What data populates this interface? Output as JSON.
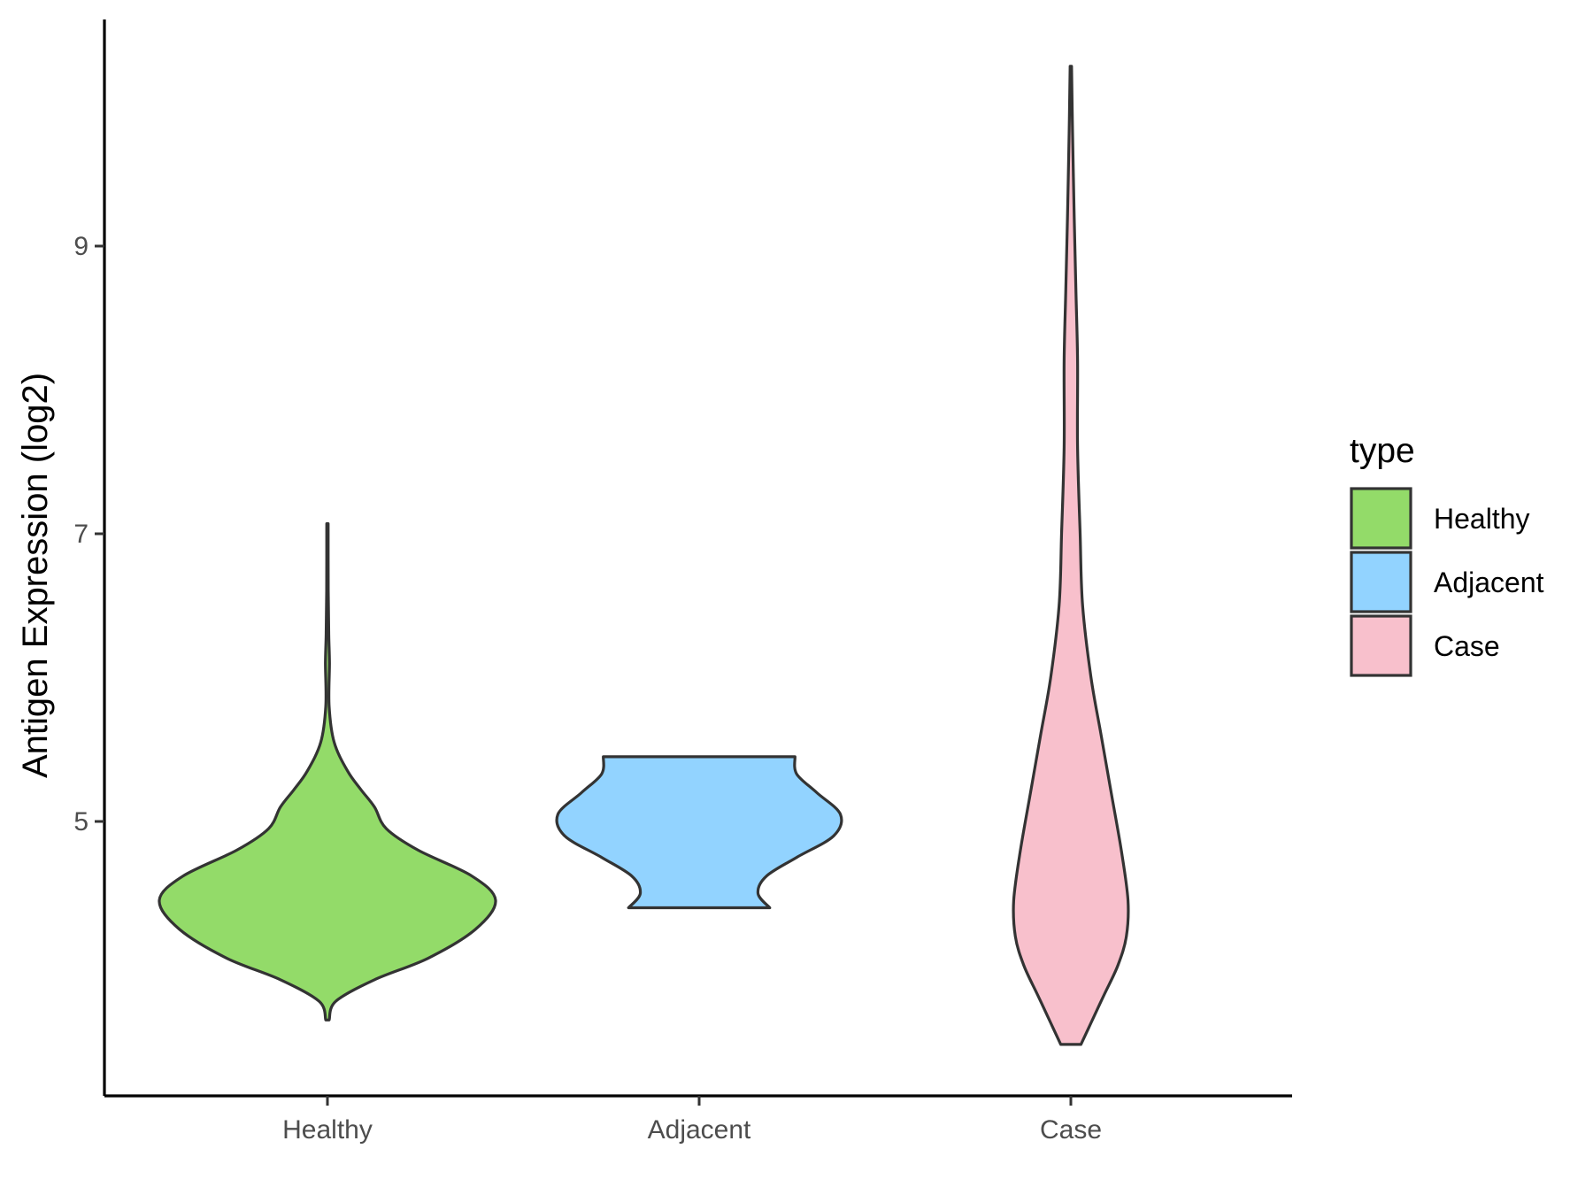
{
  "chart_data": {
    "type": "violin",
    "ylabel": "Antigen Expression (log2)",
    "xlabel": "",
    "categories": [
      "Healthy",
      "Adjacent",
      "Case"
    ],
    "y_ticks": [
      5,
      7,
      9
    ],
    "ylim": [
      3.2,
      10.6
    ],
    "grid": false,
    "legend": {
      "title": "type",
      "placement": "right",
      "entries": [
        "Healthy",
        "Adjacent",
        "Case"
      ]
    },
    "series": [
      {
        "category": "Healthy",
        "color": "#93DB69",
        "y_min": 3.62,
        "y_max": 7.07,
        "density": [
          [
            3.62,
            0.01
          ],
          [
            3.75,
            0.05
          ],
          [
            3.9,
            0.28
          ],
          [
            4.05,
            0.6
          ],
          [
            4.25,
            0.88
          ],
          [
            4.45,
            1.0
          ],
          [
            4.62,
            0.86
          ],
          [
            4.8,
            0.54
          ],
          [
            4.95,
            0.35
          ],
          [
            5.1,
            0.28
          ],
          [
            5.22,
            0.2
          ],
          [
            5.35,
            0.12
          ],
          [
            5.55,
            0.04
          ],
          [
            5.8,
            0.01
          ],
          [
            6.1,
            0.012
          ],
          [
            6.3,
            0.008
          ],
          [
            6.6,
            0.005
          ],
          [
            7.07,
            0.004
          ]
        ]
      },
      {
        "category": "Adjacent",
        "color": "#92D3FF",
        "y_min": 4.4,
        "y_max": 5.45,
        "density": [
          [
            4.4,
            0.42
          ],
          [
            4.5,
            0.35
          ],
          [
            4.62,
            0.4
          ],
          [
            4.75,
            0.58
          ],
          [
            4.9,
            0.8
          ],
          [
            5.05,
            0.84
          ],
          [
            5.2,
            0.7
          ],
          [
            5.33,
            0.58
          ],
          [
            5.45,
            0.57
          ]
        ]
      },
      {
        "category": "Case",
        "color": "#F8C0CC",
        "y_min": 3.45,
        "y_max": 10.25,
        "density": [
          [
            3.45,
            0.06
          ],
          [
            3.6,
            0.12
          ],
          [
            3.8,
            0.2
          ],
          [
            4.0,
            0.28
          ],
          [
            4.2,
            0.33
          ],
          [
            4.45,
            0.34
          ],
          [
            4.8,
            0.3
          ],
          [
            5.2,
            0.24
          ],
          [
            5.6,
            0.18
          ],
          [
            6.0,
            0.12
          ],
          [
            6.5,
            0.07
          ],
          [
            7.0,
            0.055
          ],
          [
            7.6,
            0.04
          ],
          [
            8.2,
            0.04
          ],
          [
            8.7,
            0.03
          ],
          [
            9.2,
            0.02
          ],
          [
            9.8,
            0.01
          ],
          [
            10.25,
            0.004
          ]
        ]
      }
    ]
  }
}
